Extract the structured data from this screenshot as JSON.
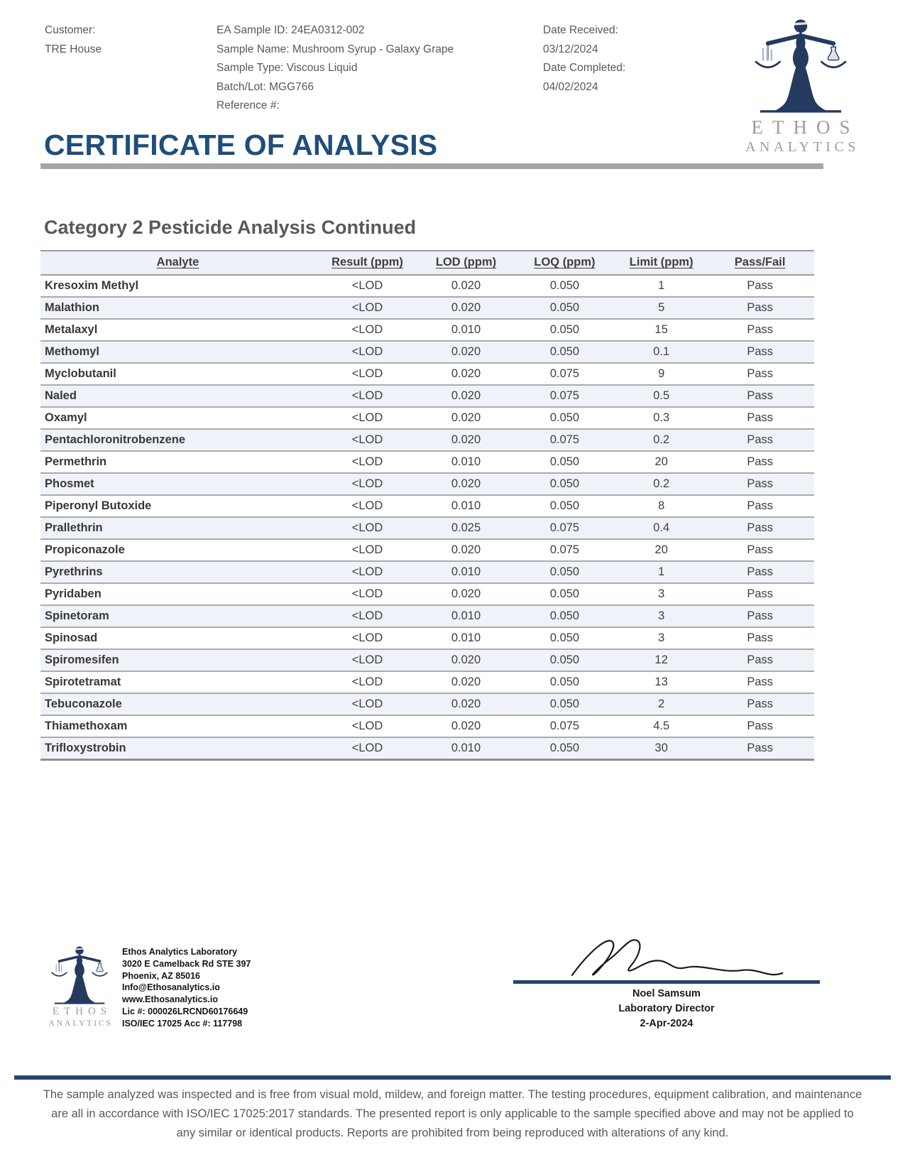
{
  "page": {
    "title": "CERTIFICATE OF ANALYSIS",
    "section_title": "Category 2 Pesticide Analysis Continued"
  },
  "header": {
    "customer": {
      "label": "Customer:",
      "value": "TRE House"
    },
    "sample_fields": [
      "EA Sample ID: 24EA0312-002",
      "Sample Name: Mushroom Syrup - Galaxy Grape",
      "Sample Type: Viscous Liquid",
      "Batch/Lot: MGG766",
      "Reference #:"
    ],
    "date_fields": [
      {
        "label": "Date Received:",
        "value": "03/12/2024"
      },
      {
        "label": "Date Completed:",
        "value": "04/02/2024"
      }
    ],
    "logo_text_top": "ETHOS",
    "logo_text_bottom": "ANALYTICS"
  },
  "table": {
    "columns": [
      "Analyte",
      "Result (ppm)",
      "LOD (ppm)",
      "LOQ (ppm)",
      "Limit (ppm)",
      "Pass/Fail"
    ],
    "rows": [
      [
        "Kresoxim Methyl",
        "<LOD",
        "0.020",
        "0.050",
        "1",
        "Pass"
      ],
      [
        "Malathion",
        "<LOD",
        "0.020",
        "0.050",
        "5",
        "Pass"
      ],
      [
        "Metalaxyl",
        "<LOD",
        "0.010",
        "0.050",
        "15",
        "Pass"
      ],
      [
        "Methomyl",
        "<LOD",
        "0.020",
        "0.050",
        "0.1",
        "Pass"
      ],
      [
        "Myclobutanil",
        "<LOD",
        "0.020",
        "0.075",
        "9",
        "Pass"
      ],
      [
        "Naled",
        "<LOD",
        "0.020",
        "0.075",
        "0.5",
        "Pass"
      ],
      [
        "Oxamyl",
        "<LOD",
        "0.020",
        "0.050",
        "0.3",
        "Pass"
      ],
      [
        "Pentachloronitrobenzene",
        "<LOD",
        "0.020",
        "0.075",
        "0.2",
        "Pass"
      ],
      [
        "Permethrin",
        "<LOD",
        "0.010",
        "0.050",
        "20",
        "Pass"
      ],
      [
        "Phosmet",
        "<LOD",
        "0.020",
        "0.050",
        "0.2",
        "Pass"
      ],
      [
        "Piperonyl Butoxide",
        "<LOD",
        "0.010",
        "0.050",
        "8",
        "Pass"
      ],
      [
        "Prallethrin",
        "<LOD",
        "0.025",
        "0.075",
        "0.4",
        "Pass"
      ],
      [
        "Propiconazole",
        "<LOD",
        "0.020",
        "0.075",
        "20",
        "Pass"
      ],
      [
        "Pyrethrins",
        "<LOD",
        "0.010",
        "0.050",
        "1",
        "Pass"
      ],
      [
        "Pyridaben",
        "<LOD",
        "0.020",
        "0.050",
        "3",
        "Pass"
      ],
      [
        "Spinetoram",
        "<LOD",
        "0.010",
        "0.050",
        "3",
        "Pass"
      ],
      [
        "Spinosad",
        "<LOD",
        "0.010",
        "0.050",
        "3",
        "Pass"
      ],
      [
        "Spiromesifen",
        "<LOD",
        "0.020",
        "0.050",
        "12",
        "Pass"
      ],
      [
        "Spirotetramat",
        "<LOD",
        "0.020",
        "0.050",
        "13",
        "Pass"
      ],
      [
        "Tebuconazole",
        "<LOD",
        "0.020",
        "0.050",
        "2",
        "Pass"
      ],
      [
        "Thiamethoxam",
        "<LOD",
        "0.020",
        "0.075",
        "4.5",
        "Pass"
      ],
      [
        "Trifloxystrobin",
        "<LOD",
        "0.010",
        "0.050",
        "30",
        "Pass"
      ]
    ]
  },
  "footer": {
    "lab_info": [
      "Ethos Analytics Laboratory",
      "3020 E Camelback Rd STE 397",
      "Phoenix, AZ 85016",
      "Info@Ethosanalytics.io",
      "www.Ethosanalytics.io",
      "Lic #: 000026LRCND60176649",
      "ISO/IEC 17025 Acc #: 117798"
    ],
    "logo_text_top": "ETHOS",
    "logo_text_bottom": "ANALYTICS",
    "signer": {
      "name": "Noel Samsum",
      "title": "Laboratory Director",
      "date": "2-Apr-2024"
    }
  },
  "disclaimer": "The sample analyzed was inspected and is free from visual mold, mildew, and foreign matter. The testing procedures, equipment calibration, and maintenance are all in accordance with ISO/IEC 17025:2017 standards. The presented report is only applicable to the sample specified above and may not be applied to any similar or identical products. Reports are prohibited from being reproduced with alterations of any kind.",
  "colors": {
    "title_blue": "#1f4e79",
    "logo_navy": "#243a5e",
    "bar_gray": "#a6a6a6",
    "table_header_bg": "#eef1f7",
    "row_alt_bg": "#eff3f9",
    "row_border_gray": "#ababab",
    "text_dark": "#3f3f3f",
    "text_gray": "#595959",
    "logo_text_gray": "#9c9c9c",
    "signature_line_navy": "#26436d",
    "bottom_bar_navy": "#274770"
  }
}
